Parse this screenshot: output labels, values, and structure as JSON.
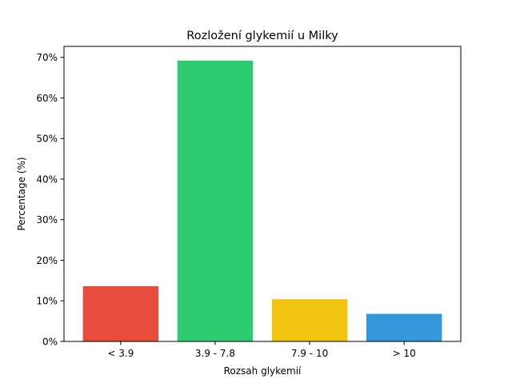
{
  "chart_data": {
    "type": "bar",
    "title": "Rozložení glykemií u  Milky",
    "xlabel": "Rozsah glykemií",
    "ylabel": "Percentage (%)",
    "categories": [
      "< 3.9",
      "3.9 - 7.8",
      "7.9 - 10",
      "> 10"
    ],
    "values": [
      13.6,
      69.2,
      10.4,
      6.8
    ],
    "colors": [
      "#e74c3c",
      "#2ecc71",
      "#f1c40f",
      "#3498db"
    ],
    "ylim": [
      0,
      72.7
    ],
    "yticks": [
      0,
      10,
      20,
      30,
      40,
      50,
      60,
      70
    ],
    "ytick_format": "{v}%",
    "grid": false,
    "legend": "none"
  }
}
